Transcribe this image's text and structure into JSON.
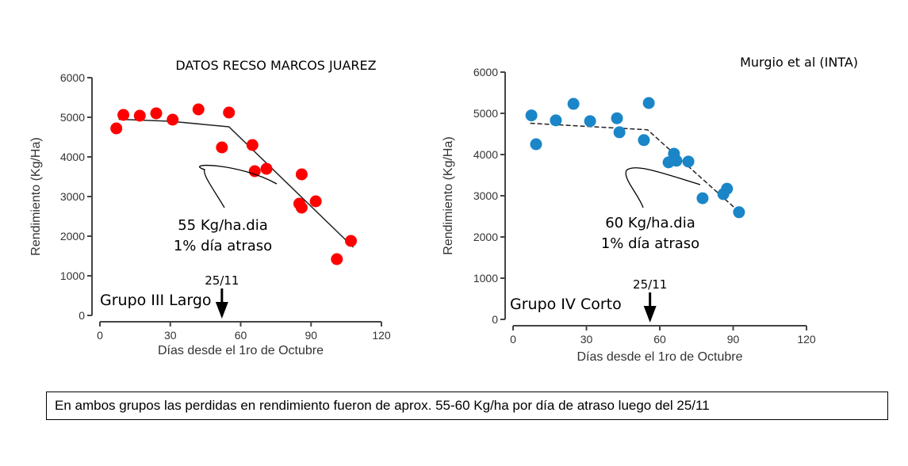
{
  "chart_data": [
    {
      "type": "scatter",
      "title": "DATOS RECSO MARCOS JUAREZ",
      "xlabel": "Días desde el 1ro de Octubre",
      "ylabel": "Rendimiento (Kg/Ha)",
      "xlim": [
        0,
        120
      ],
      "ylim": [
        0,
        6000
      ],
      "xticks": [
        0,
        30,
        60,
        90,
        120
      ],
      "yticks": [
        0,
        1000,
        2000,
        3000,
        4000,
        5000,
        6000
      ],
      "marker_color": "#ff0000",
      "points": [
        [
          7,
          4720
        ],
        [
          10,
          5060
        ],
        [
          17,
          5040
        ],
        [
          24,
          5100
        ],
        [
          31,
          4940
        ],
        [
          42,
          5200
        ],
        [
          52,
          4240
        ],
        [
          55,
          5120
        ],
        [
          65,
          4300
        ],
        [
          66,
          3640
        ],
        [
          71,
          3700
        ],
        [
          85,
          2820
        ],
        [
          86,
          3560
        ],
        [
          86,
          2720
        ],
        [
          92,
          2880
        ],
        [
          101,
          1420
        ],
        [
          107,
          1880
        ]
      ],
      "trend": [
        [
          8,
          4950
        ],
        [
          30,
          4900
        ],
        [
          55,
          4760
        ],
        [
          108,
          1720
        ]
      ],
      "trend_style": "solid",
      "annotation": [
        "55 Kg/ha.dia",
        "1% día atraso"
      ],
      "group_label": "Grupo III Largo",
      "arrow_label": "25/11",
      "arrow_x": 52
    },
    {
      "type": "scatter",
      "title": "Murgio et al (INTA)",
      "xlabel": "Días desde el 1ro de Octubre",
      "ylabel": "Rendimiento (Kg/Ha)",
      "xlim": [
        0,
        120
      ],
      "ylim": [
        0,
        6000
      ],
      "xticks": [
        0,
        30,
        60,
        90,
        120
      ],
      "yticks": [
        0,
        1000,
        2000,
        3000,
        4000,
        5000,
        6000
      ],
      "marker_color": "#1a86c8",
      "points": [
        [
          7.5,
          4950
        ],
        [
          9.4,
          4250
        ],
        [
          17.5,
          4830
        ],
        [
          24.7,
          5230
        ],
        [
          31.5,
          4810
        ],
        [
          42.5,
          4880
        ],
        [
          43.5,
          4540
        ],
        [
          53.5,
          4350
        ],
        [
          55.5,
          5250
        ],
        [
          63.6,
          3810
        ],
        [
          65.8,
          4020
        ],
        [
          66.8,
          3850
        ],
        [
          71.7,
          3830
        ],
        [
          77.5,
          2940
        ],
        [
          86,
          3040
        ],
        [
          87.5,
          3170
        ],
        [
          92.4,
          2600
        ]
      ],
      "trend": [
        [
          7,
          4760
        ],
        [
          55,
          4600
        ],
        [
          93,
          2580
        ]
      ],
      "trend_style": "dashed",
      "annotation": [
        "60 Kg/ha.dia",
        "1% día atraso"
      ],
      "group_label": "Grupo IV Corto",
      "arrow_label": "25/11",
      "arrow_x": 56
    }
  ],
  "note": "En ambos grupos las perdidas en rendimiento fueron de aprox. 55-60 Kg/ha por día de atraso luego del 25/11"
}
